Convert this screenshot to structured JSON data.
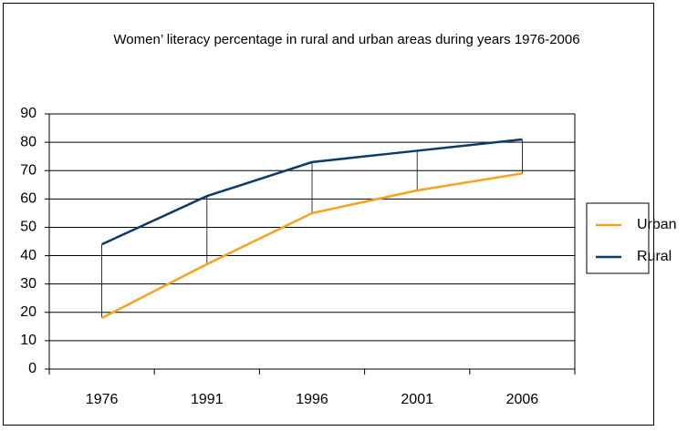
{
  "chart_data": {
    "type": "line",
    "title": "Women’ literacy percentage in rural and urban areas during years 1976-2006",
    "categories": [
      "1976",
      "1991",
      "1996",
      "2001",
      "2006"
    ],
    "series": [
      {
        "name": "Urban",
        "color": "#f9a11b",
        "values": [
          18,
          37,
          55,
          63,
          69
        ]
      },
      {
        "name": "Rural",
        "color": "#0e3a68",
        "values": [
          44,
          61,
          73,
          77,
          81
        ]
      }
    ],
    "ylim": [
      0,
      90
    ],
    "yticks": [
      0,
      10,
      20,
      30,
      40,
      50,
      60,
      70,
      80,
      90
    ],
    "grid": true,
    "drop_lines": true,
    "legend": "right"
  }
}
